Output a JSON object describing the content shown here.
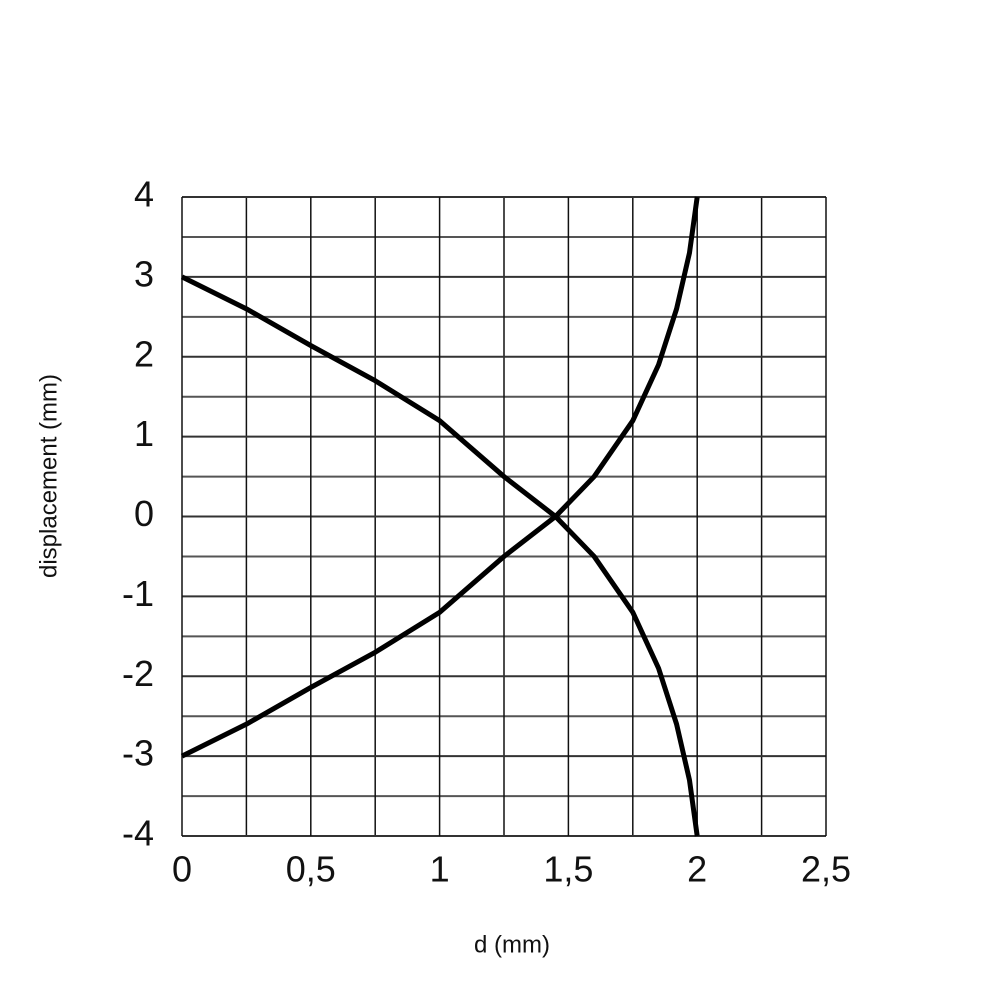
{
  "chart_data": {
    "type": "line",
    "x_label": "d (mm)",
    "y_label": "displacement (mm)",
    "x": [
      0,
      0.25,
      0.5,
      0.75,
      1,
      1.25,
      1.45,
      1.6,
      1.75,
      1.85,
      1.92,
      1.97,
      2
    ],
    "series": [
      {
        "color": "#000000",
        "values": [
          3,
          2.6,
          2.14,
          1.7,
          1.2,
          0.5,
          0,
          -0.5,
          -1.2,
          -1.9,
          -2.6,
          -3.3,
          -4
        ]
      },
      {
        "color": "#000000",
        "values": [
          -3,
          -2.6,
          -2.14,
          -1.7,
          -1.2,
          -0.5,
          0,
          0.5,
          1.2,
          1.9,
          2.6,
          3.3,
          4
        ]
      }
    ],
    "xlim": [
      0,
      2.5
    ],
    "xticks": [
      0,
      {
        "value": 0.5,
        "label": "0,5"
      },
      1,
      {
        "value": 1.5,
        "label": "1,5"
      },
      2,
      {
        "value": 2.5,
        "label": "2,5"
      }
    ],
    "x_minor_grid": [
      0.25,
      0.75,
      1.25,
      1.75,
      2.25
    ],
    "ylim": [
      -4,
      4
    ],
    "yticks": [
      -4,
      -3,
      -2,
      -1,
      0,
      1,
      2,
      3,
      4
    ],
    "y_minor_grid": [
      -3.5,
      -2.5,
      -1.5,
      -0.5,
      0.5,
      1.5,
      2.5,
      3.5
    ],
    "grid": true
  }
}
